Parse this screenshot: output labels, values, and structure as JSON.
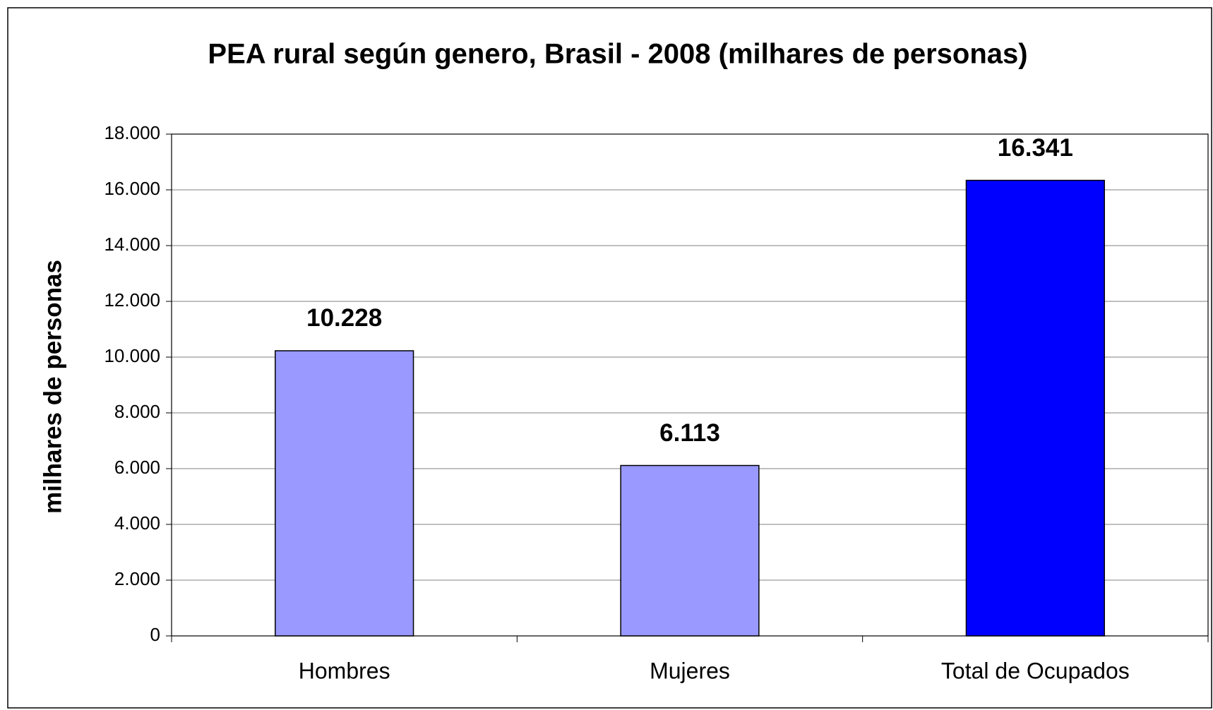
{
  "chart_data": {
    "type": "bar",
    "title": "PEA rural según genero, Brasil - 2008 (milhares de personas)",
    "y_label": "milhares de personas",
    "categories": [
      "Hombres",
      "Mujeres",
      "Total de Ocupados"
    ],
    "values": [
      10228,
      6113,
      16341
    ],
    "value_labels": [
      "10.228",
      "6.113",
      "16.341"
    ],
    "colors": [
      "#9999ff",
      "#9999ff",
      "#0000ff"
    ],
    "ylim": [
      0,
      18000
    ],
    "yticks": [
      0,
      {
        "value": 2000,
        "label": "2.000"
      },
      {
        "value": 4000,
        "label": "4.000"
      },
      {
        "value": 6000,
        "label": "6.000"
      },
      {
        "value": 8000,
        "label": "8.000"
      },
      {
        "value": 10000,
        "label": "10.000"
      },
      {
        "value": 12000,
        "label": "12.000"
      },
      {
        "value": 14000,
        "label": "14.000"
      },
      {
        "value": 16000,
        "label": "16.000"
      },
      {
        "value": 18000,
        "label": "18.000"
      }
    ],
    "grid": true
  }
}
